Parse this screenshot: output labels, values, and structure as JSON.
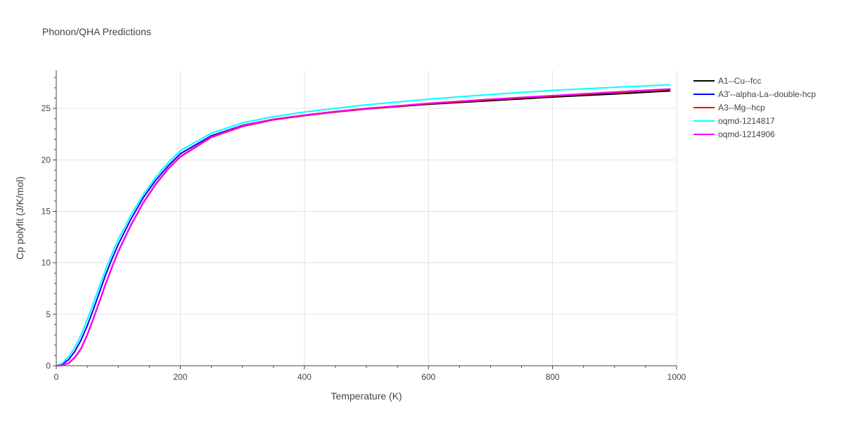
{
  "chart_data": {
    "type": "line",
    "title": "Phonon/QHA Predictions",
    "xlabel": "Temperature (K)",
    "ylabel": "Cp polyfit (J/K/mol)",
    "xlim": [
      0,
      1000
    ],
    "ylim": [
      0,
      28.7
    ],
    "xticks": [
      0,
      200,
      400,
      600,
      800,
      1000
    ],
    "yticks": [
      0,
      5,
      10,
      15,
      20,
      25
    ],
    "grid": true,
    "legend_position": "top-right",
    "x": [
      0,
      10,
      20,
      30,
      40,
      50,
      60,
      70,
      80,
      90,
      100,
      120,
      140,
      160,
      180,
      200,
      250,
      300,
      350,
      400,
      450,
      500,
      600,
      700,
      800,
      900,
      990
    ],
    "series": [
      {
        "name": "A1--Cu--fcc",
        "color": "#000000",
        "values": [
          0,
          0.03,
          0.25,
          0.8,
          1.65,
          3.0,
          4.6,
          6.3,
          8.0,
          9.6,
          11.1,
          13.6,
          15.8,
          17.6,
          19.1,
          20.3,
          22.2,
          23.25,
          23.9,
          24.3,
          24.65,
          24.95,
          25.4,
          25.75,
          26.1,
          26.4,
          26.7
        ]
      },
      {
        "name": "A3'--alpha-La--double-hcp",
        "color": "#0000ff",
        "values": [
          0,
          0.15,
          0.6,
          1.4,
          2.5,
          3.9,
          5.5,
          7.2,
          8.9,
          10.4,
          11.8,
          14.2,
          16.3,
          18.0,
          19.4,
          20.6,
          22.35,
          23.35,
          23.95,
          24.35,
          24.7,
          25.0,
          25.45,
          25.85,
          26.2,
          26.55,
          26.85
        ]
      },
      {
        "name": "A3--Mg--hcp",
        "color": "#ff0000",
        "values": [
          0,
          0.03,
          0.25,
          0.8,
          1.65,
          3.0,
          4.6,
          6.3,
          8.0,
          9.6,
          11.1,
          13.6,
          15.8,
          17.6,
          19.1,
          20.3,
          22.2,
          23.25,
          23.9,
          24.3,
          24.65,
          24.95,
          25.45,
          25.85,
          26.2,
          26.55,
          26.85
        ]
      },
      {
        "name": "oqmd-1214817",
        "color": "#00ffff",
        "values": [
          0,
          0.25,
          0.9,
          1.8,
          3.0,
          4.5,
          6.1,
          7.8,
          9.4,
          10.9,
          12.3,
          14.6,
          16.6,
          18.3,
          19.7,
          20.9,
          22.6,
          23.6,
          24.2,
          24.65,
          25.0,
          25.35,
          25.9,
          26.35,
          26.75,
          27.05,
          27.3
        ]
      },
      {
        "name": "oqmd-1214906",
        "color": "#ff00ff",
        "values": [
          0,
          0.04,
          0.28,
          0.85,
          1.7,
          3.05,
          4.65,
          6.35,
          8.05,
          9.65,
          11.15,
          13.65,
          15.85,
          17.65,
          19.15,
          20.35,
          22.25,
          23.3,
          23.95,
          24.35,
          24.7,
          25.0,
          25.5,
          25.9,
          26.25,
          26.6,
          26.9
        ]
      }
    ]
  }
}
